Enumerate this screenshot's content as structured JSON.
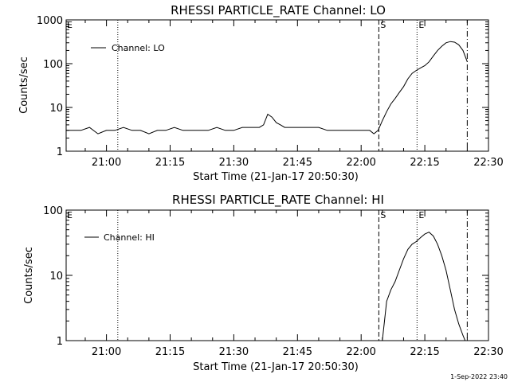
{
  "footer_stamp": "1-Sep-2022 23:40",
  "colors": {
    "background": "#ffffff",
    "foreground": "#000000"
  },
  "chart_data": [
    {
      "type": "line",
      "title": "RHESSI PARTICLE_RATE Channel: LO",
      "xlabel": "Start Time (21-Jan-17 20:50:30)",
      "ylabel": "Counts/sec",
      "y_scale": "log",
      "xlim": [
        "20:50:30",
        "22:30:00"
      ],
      "ylim": [
        1,
        1000
      ],
      "x_ticks": [
        "21:00",
        "21:15",
        "21:30",
        "21:45",
        "22:00",
        "22:15",
        "22:30"
      ],
      "y_ticks": [
        "1",
        "10",
        "100",
        "1000"
      ],
      "legend": {
        "position": "top-left",
        "entries": [
          "Channel: LO"
        ]
      },
      "grid": false,
      "markers": [
        {
          "label": "",
          "time": "21:02:40",
          "style": "dotted"
        },
        {
          "label": "S",
          "time": "22:04:10",
          "style": "dashed"
        },
        {
          "label": "E",
          "time": "22:13:10",
          "style": "dotted"
        },
        {
          "label": "",
          "time": "22:25:00",
          "style": "dash-dot"
        }
      ],
      "edge_marker": "E",
      "series": [
        {
          "name": "Channel: LO",
          "x": [
            "20:50:30",
            "20:52:00",
            "20:54:00",
            "20:56:00",
            "20:58:00",
            "21:00:00",
            "21:02:00",
            "21:04:00",
            "21:06:00",
            "21:08:00",
            "21:10:00",
            "21:12:00",
            "21:14:00",
            "21:16:00",
            "21:18:00",
            "21:20:00",
            "21:22:00",
            "21:24:00",
            "21:26:00",
            "21:28:00",
            "21:30:00",
            "21:32:00",
            "21:34:00",
            "21:36:00",
            "21:37:00",
            "21:38:00",
            "21:39:00",
            "21:40:00",
            "21:41:00",
            "21:42:00",
            "21:44:00",
            "21:46:00",
            "21:48:00",
            "21:50:00",
            "21:52:00",
            "21:54:00",
            "21:56:00",
            "21:58:00",
            "22:00:00",
            "22:02:00",
            "22:03:00",
            "22:04:00",
            "22:05:00",
            "22:06:00",
            "22:07:00",
            "22:08:00",
            "22:09:00",
            "22:10:00",
            "22:11:00",
            "22:12:00",
            "22:13:00",
            "22:14:00",
            "22:15:00",
            "22:16:00",
            "22:17:00",
            "22:18:00",
            "22:19:00",
            "22:20:00",
            "22:21:00",
            "22:22:00",
            "22:23:00",
            "22:24:00",
            "22:25:00"
          ],
          "y": [
            3,
            3,
            3,
            3.5,
            2.5,
            3,
            3,
            3.5,
            3,
            3,
            2.5,
            3,
            3,
            3.5,
            3,
            3,
            3,
            3,
            3.5,
            3,
            3,
            3.5,
            3.5,
            3.5,
            4,
            7,
            6,
            4.5,
            4,
            3.5,
            3.5,
            3.5,
            3.5,
            3.5,
            3,
            3,
            3,
            3,
            3,
            3,
            2.5,
            3,
            5,
            8,
            12,
            16,
            22,
            30,
            45,
            60,
            70,
            80,
            90,
            110,
            150,
            200,
            250,
            300,
            320,
            310,
            270,
            200,
            110
          ]
        }
      ]
    },
    {
      "type": "line",
      "title": "RHESSI PARTICLE_RATE Channel: HI",
      "xlabel": "Start Time (21-Jan-17 20:50:30)",
      "ylabel": "Counts/sec",
      "y_scale": "log",
      "xlim": [
        "20:50:30",
        "22:30:00"
      ],
      "ylim": [
        1,
        100
      ],
      "x_ticks": [
        "21:00",
        "21:15",
        "21:30",
        "21:45",
        "22:00",
        "22:15",
        "22:30"
      ],
      "y_ticks": [
        "1",
        "10",
        "100"
      ],
      "legend": {
        "position": "top-left",
        "entries": [
          "Channel: HI"
        ]
      },
      "grid": false,
      "markers": [
        {
          "label": "",
          "time": "21:02:40",
          "style": "dotted"
        },
        {
          "label": "S",
          "time": "22:04:10",
          "style": "dashed"
        },
        {
          "label": "E",
          "time": "22:13:10",
          "style": "dotted"
        },
        {
          "label": "",
          "time": "22:25:00",
          "style": "dash-dot"
        }
      ],
      "edge_marker": "E",
      "series": [
        {
          "name": "Channel: HI",
          "x": [
            "22:05:00",
            "22:05:30",
            "22:06:00",
            "22:07:00",
            "22:08:00",
            "22:09:00",
            "22:10:00",
            "22:11:00",
            "22:12:00",
            "22:13:00",
            "22:14:00",
            "22:15:00",
            "22:16:00",
            "22:17:00",
            "22:18:00",
            "22:19:00",
            "22:20:00",
            "22:21:00",
            "22:22:00",
            "22:23:00",
            "22:24:00",
            "22:24:30",
            "22:25:00"
          ],
          "y": [
            1,
            2,
            4,
            6,
            8,
            12,
            18,
            25,
            30,
            33,
            38,
            43,
            46,
            40,
            30,
            20,
            12,
            6,
            3,
            1.8,
            1.2,
            1,
            1
          ]
        }
      ]
    }
  ]
}
